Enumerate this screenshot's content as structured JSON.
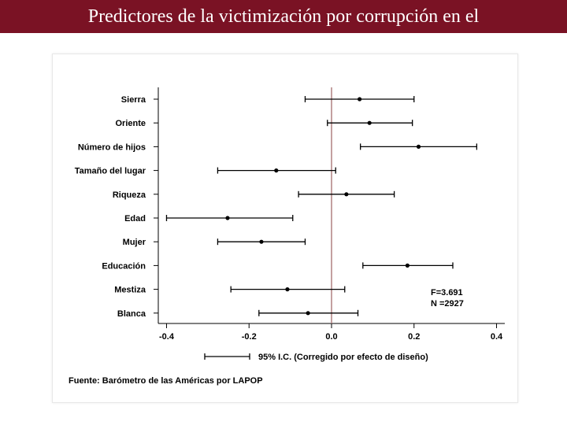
{
  "header": {
    "title": "Predictores de la victimización por corrupción en el"
  },
  "colors": {
    "title_bar": "#7a1224",
    "zero_line": "#b08080"
  },
  "chart_data": {
    "type": "scatter",
    "subtype": "coefficient-plot-with-error-bars",
    "categories": [
      "Sierra",
      "Oriente",
      "Número de hijos",
      "Tamaño del lugar",
      "Riqueza",
      "Edad",
      "Mujer",
      "Educación",
      "Mestiza",
      "Blanca"
    ],
    "estimates": [
      0.068,
      0.092,
      0.211,
      -0.134,
      0.036,
      -0.252,
      -0.17,
      0.184,
      -0.107,
      -0.057
    ],
    "ci_low": [
      -0.064,
      -0.01,
      0.07,
      -0.276,
      -0.08,
      -0.4,
      -0.276,
      0.076,
      -0.244,
      -0.176
    ],
    "ci_high": [
      0.2,
      0.196,
      0.352,
      0.01,
      0.152,
      -0.094,
      -0.064,
      0.294,
      0.032,
      0.064
    ],
    "xticks": [
      "-0.4",
      "-0.2",
      "0.0",
      "0.2",
      "0.4"
    ],
    "xtick_values": [
      -0.4,
      -0.2,
      0,
      0.2,
      0.4
    ],
    "xlim": [
      -0.42,
      0.42
    ],
    "reference_line_x": 0,
    "stats": {
      "f": "F=3.691",
      "n": "N =2927"
    },
    "legend": {
      "label": "95% I.C. (Corregido por efecto de diseño)",
      "placement": "bottom"
    },
    "source": "Fuente: Barómetro de las Américas por LAPOP",
    "grid": false
  }
}
